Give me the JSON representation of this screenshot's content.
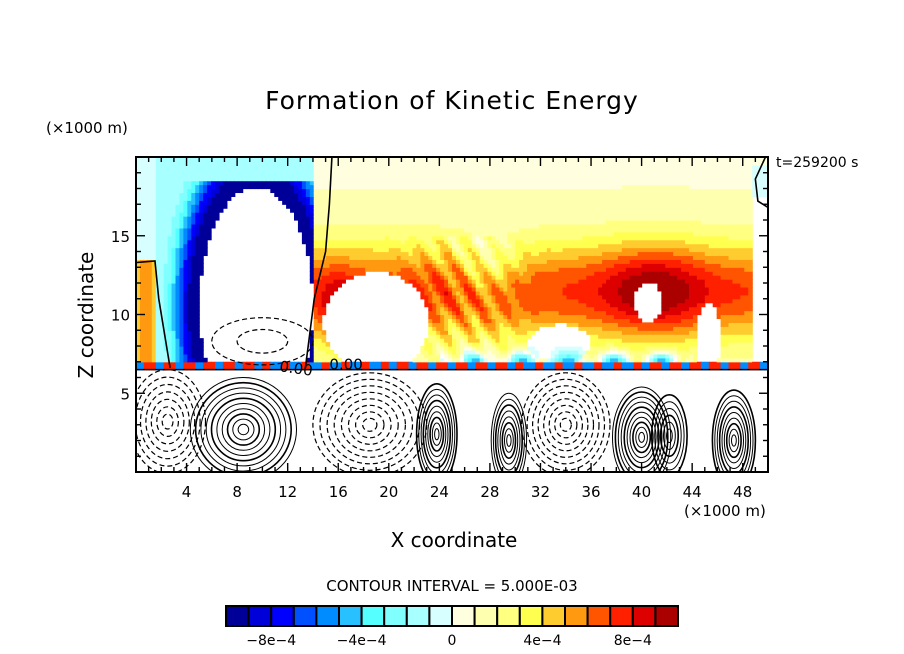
{
  "chart_data": {
    "type": "heatmap",
    "title": "Formation of Kinetic Energy",
    "xlabel": "X coordinate",
    "ylabel": "Z coordinate",
    "x_unit": "(×1000 m)",
    "y_unit": "(×1000 m)",
    "annotation_time": "t=259200 s",
    "contour_interval_text": "CONTOUR INTERVAL = 5.000E-03",
    "contour_labels": [
      "0.00",
      "0.00"
    ],
    "xlim": [
      0,
      50
    ],
    "ylim": [
      0,
      20
    ],
    "x_ticks": [
      4,
      8,
      12,
      16,
      20,
      24,
      28,
      32,
      36,
      40,
      44,
      48
    ],
    "y_ticks": [
      5,
      10,
      15
    ],
    "colorbar": {
      "levels": 20,
      "range": [
        -0.001,
        0.001
      ],
      "tick_labels": [
        "−8e−4",
        "−4e−4",
        "0",
        "4e−4",
        "8e−4"
      ],
      "tick_values": [
        -0.0008,
        -0.0004,
        0,
        0.0004,
        0.0008
      ],
      "colors": [
        "#000099",
        "#0000d8",
        "#0000ff",
        "#0050ff",
        "#008cff",
        "#28c0ff",
        "#55ffff",
        "#80ffff",
        "#a8ffff",
        "#d8ffff",
        "#ffffe0",
        "#ffffb0",
        "#ffff80",
        "#ffff50",
        "#ffcc30",
        "#ff9910",
        "#ff5500",
        "#ff2000",
        "#dd0000",
        "#aa0000"
      ]
    },
    "features": [
      {
        "name": "negative-energy-dome",
        "x_center": 9.5,
        "z_range": [
          6.8,
          19
        ],
        "min_level": -0.0009
      },
      {
        "name": "positive-energy-cloud-mid",
        "x_range": [
          15,
          36
        ],
        "z_range": [
          6.5,
          19
        ],
        "max_level": 0.0009
      },
      {
        "name": "positive-energy-cloud-right",
        "x_range": [
          36,
          50
        ],
        "z_range": [
          6.5,
          19
        ],
        "max_level": 0.001
      },
      {
        "name": "contour-cells-lower-layer",
        "z_range": [
          0,
          6.5
        ]
      }
    ],
    "grid": false,
    "legend_position": "bottom"
  }
}
